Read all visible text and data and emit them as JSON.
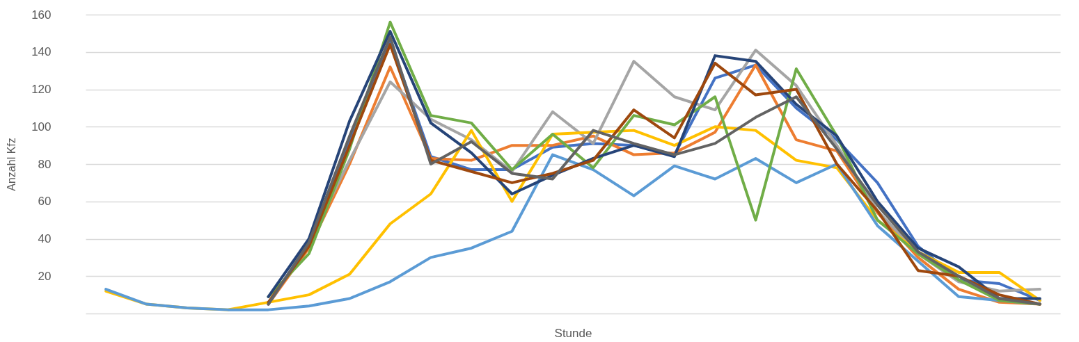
{
  "chart_data": {
    "type": "line",
    "xlabel": "Stunde",
    "ylabel": "Anzahl Kfz",
    "categories": [
      null,
      null,
      null,
      null,
      null,
      null,
      null,
      null,
      null,
      null,
      null,
      null,
      null,
      null,
      null,
      null,
      null,
      null,
      null,
      null,
      null,
      null,
      null,
      null
    ],
    "ylim": [
      0,
      160
    ],
    "yticks": [
      20,
      40,
      60,
      80,
      100,
      120,
      140,
      160
    ],
    "grid": "y",
    "legend": false,
    "tick_labels": "y",
    "marker": "none",
    "line_style": "solid",
    "series": [
      {
        "color": "#4472c4",
        "values": [
          null,
          null,
          null,
          null,
          5,
          38,
          92,
          146,
          84,
          77,
          77,
          89,
          91,
          90,
          85,
          126,
          133,
          110,
          93,
          70,
          36,
          18,
          16,
          7
        ]
      },
      {
        "color": "#ed7d31",
        "values": [
          null,
          null,
          null,
          null,
          5,
          35,
          80,
          132,
          83,
          82,
          90,
          90,
          95,
          85,
          86,
          97,
          133,
          93,
          87,
          54,
          30,
          13,
          6,
          5
        ]
      },
      {
        "color": "#a5a5a5",
        "values": [
          null,
          null,
          null,
          null,
          5,
          38,
          82,
          124,
          104,
          93,
          76,
          108,
          91,
          135,
          116,
          109,
          141,
          122,
          90,
          55,
          32,
          17,
          12,
          13
        ]
      },
      {
        "color": "#ffc000",
        "values": [
          12,
          5,
          3,
          2,
          6,
          10,
          21,
          48,
          64,
          98,
          60,
          96,
          97,
          98,
          90,
          100,
          98,
          82,
          78,
          50,
          33,
          22,
          22,
          7
        ]
      },
      {
        "color": "#5b9bd5",
        "values": [
          13,
          5,
          3,
          2,
          2,
          4,
          8,
          17,
          30,
          35,
          44,
          85,
          77,
          63,
          79,
          72,
          83,
          70,
          80,
          47,
          28,
          9,
          7,
          5
        ]
      },
      {
        "color": "#70ad47",
        "values": [
          null,
          null,
          null,
          null,
          9,
          32,
          88,
          156,
          106,
          102,
          77,
          96,
          78,
          106,
          101,
          116,
          50,
          131,
          95,
          50,
          32,
          18,
          7,
          5
        ]
      },
      {
        "color": "#264478",
        "values": [
          null,
          null,
          null,
          null,
          9,
          40,
          103,
          151,
          102,
          86,
          64,
          74,
          83,
          90,
          84,
          138,
          135,
          112,
          95,
          60,
          35,
          25,
          8,
          8
        ]
      },
      {
        "color": "#9e480e",
        "values": [
          null,
          null,
          null,
          null,
          6,
          36,
          90,
          144,
          82,
          76,
          70,
          75,
          82,
          109,
          94,
          134,
          117,
          120,
          80,
          55,
          23,
          20,
          10,
          5
        ]
      },
      {
        "color": "#636363",
        "values": [
          null,
          null,
          null,
          null,
          5,
          38,
          95,
          148,
          80,
          92,
          75,
          72,
          98,
          91,
          85,
          91,
          105,
          116,
          88,
          58,
          33,
          20,
          8,
          5
        ]
      }
    ]
  }
}
